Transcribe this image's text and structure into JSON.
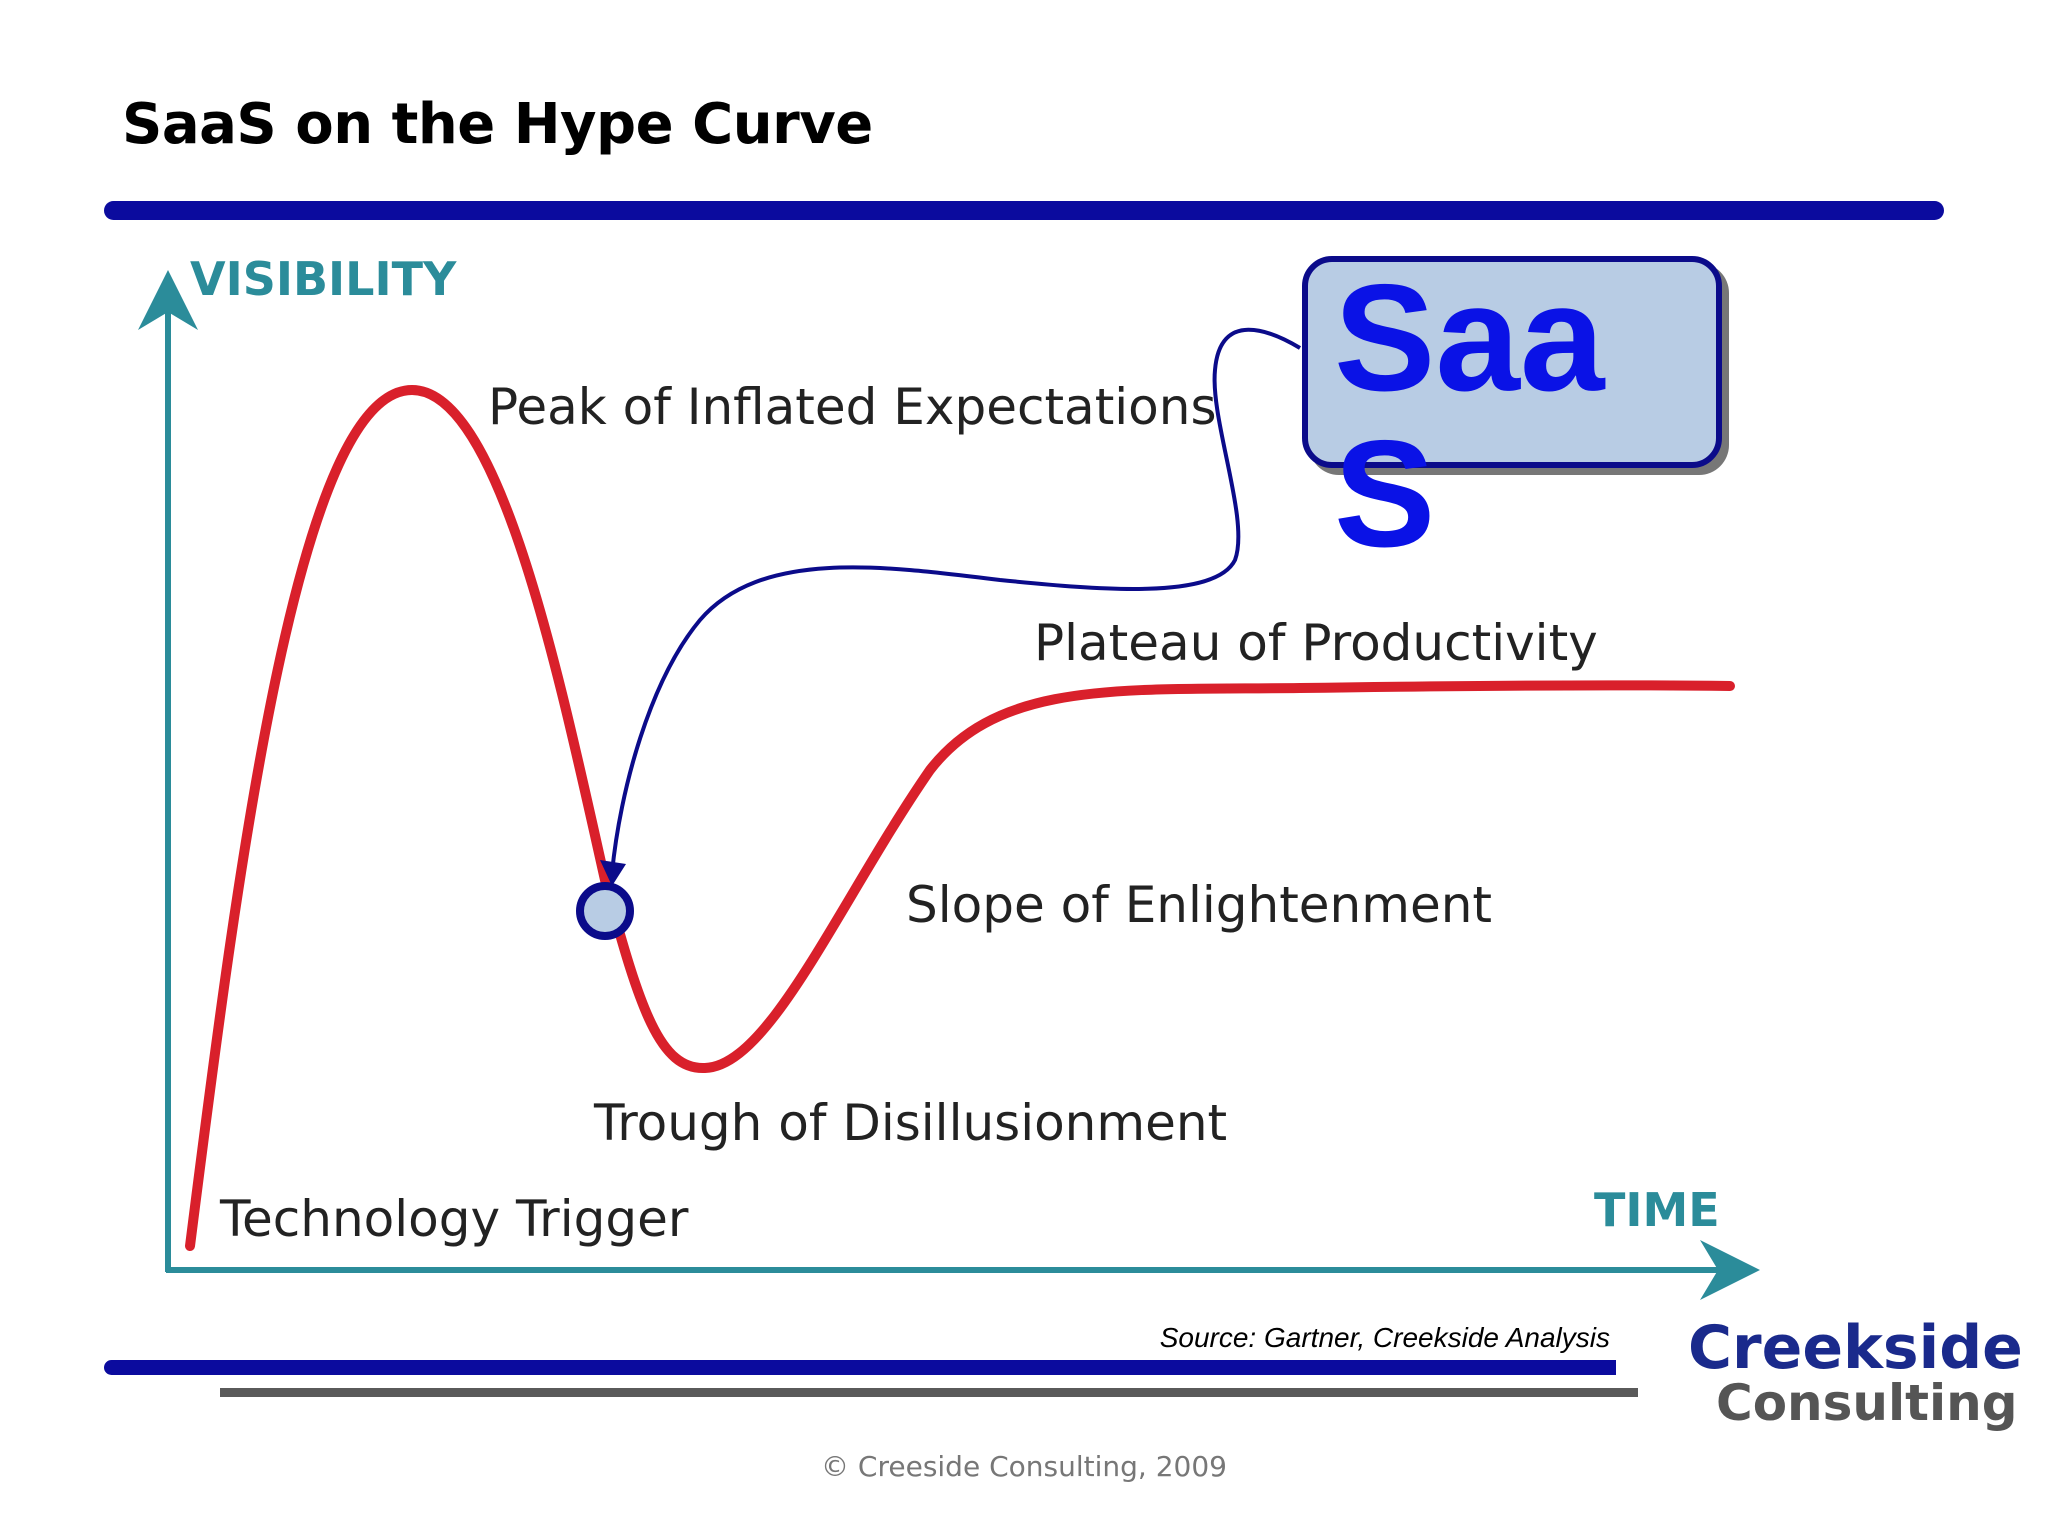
{
  "slide": {
    "title": "SaaS on the Hype Curve",
    "source": "Source:  Gartner, Creekside Analysis",
    "copyright": "© Creeside Consulting, 2009"
  },
  "diagram": {
    "y_axis_label": "VISIBILITY",
    "x_axis_label": "TIME",
    "stages": {
      "peak": "Peak of Inflated Expectations",
      "plateau": "Plateau of Productivity",
      "slope": "Slope of Enlightenment",
      "trough": "Trough of Disillusionment",
      "trigger": "Technology Trigger"
    },
    "callout": "SaaS",
    "marker_stage": "Trough of Disillusionment"
  },
  "logo": {
    "line1": "Creekside",
    "line2": "Consulting"
  },
  "colors": {
    "curve": "#d9202b",
    "axis": "#2b8c9a",
    "rule": "#0b0b9e",
    "callout_fill": "#b8cce4",
    "callout_text": "#0a12e6",
    "connector": "#0b0b8a"
  }
}
